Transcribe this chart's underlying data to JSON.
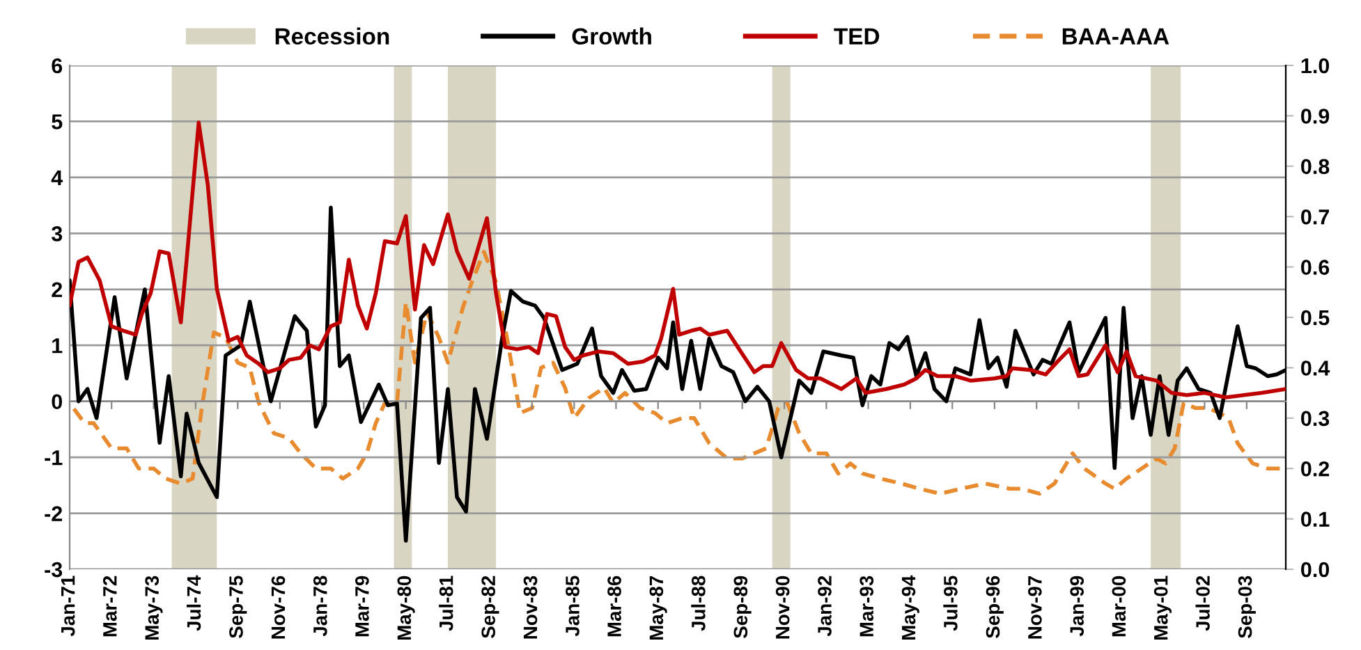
{
  "chart_data": {
    "type": "line",
    "legend": "top",
    "grid": "y",
    "marker": "none",
    "xlim": [
      "1971-01",
      "2004-10"
    ],
    "xticks": [
      {
        "value": "1971-01",
        "label": "Jan-71"
      },
      {
        "value": "1972-03",
        "label": "Mar-72"
      },
      {
        "value": "1973-05",
        "label": "May-73"
      },
      {
        "value": "1974-07",
        "label": "Jul-74"
      },
      {
        "value": "1975-09",
        "label": "Sep-75"
      },
      {
        "value": "1976-11",
        "label": "Nov-76"
      },
      {
        "value": "1978-01",
        "label": "Jan-78"
      },
      {
        "value": "1979-03",
        "label": "Mar-79"
      },
      {
        "value": "1980-05",
        "label": "May-80"
      },
      {
        "value": "1981-07",
        "label": "Jul-81"
      },
      {
        "value": "1982-09",
        "label": "Sep-82"
      },
      {
        "value": "1983-11",
        "label": "Nov-83"
      },
      {
        "value": "1985-01",
        "label": "Jan-85"
      },
      {
        "value": "1986-03",
        "label": "Mar-86"
      },
      {
        "value": "1987-05",
        "label": "May-87"
      },
      {
        "value": "1988-07",
        "label": "Jul-88"
      },
      {
        "value": "1989-09",
        "label": "Sep-89"
      },
      {
        "value": "1990-11",
        "label": "Nov-90"
      },
      {
        "value": "1992-01",
        "label": "Jan-92"
      },
      {
        "value": "1993-03",
        "label": "Mar-93"
      },
      {
        "value": "1994-05",
        "label": "May-94"
      },
      {
        "value": "1995-07",
        "label": "Jul-95"
      },
      {
        "value": "1996-09",
        "label": "Sep-96"
      },
      {
        "value": "1997-11",
        "label": "Nov-97"
      },
      {
        "value": "1999-01",
        "label": "Jan-99"
      },
      {
        "value": "2000-03",
        "label": "Mar-00"
      },
      {
        "value": "2001-05",
        "label": "May-01"
      },
      {
        "value": "2002-07",
        "label": "Jul-02"
      },
      {
        "value": "2003-09",
        "label": "Sep-03"
      }
    ],
    "ylim": [
      -3,
      6
    ],
    "yticks": [
      -3,
      -2,
      -1,
      0,
      1,
      2,
      3,
      4,
      5,
      6
    ],
    "y2lim": [
      0,
      1
    ],
    "y2ticks": [
      {
        "value": 0,
        "label": "0.0"
      },
      {
        "value": 0.1,
        "label": "0.1"
      },
      {
        "value": 0.2,
        "label": "0.2"
      },
      {
        "value": 0.3,
        "label": "0.3"
      },
      {
        "value": 0.4,
        "label": "0.4"
      },
      {
        "value": 0.5,
        "label": "0.5"
      },
      {
        "value": 0.6,
        "label": "0.6"
      },
      {
        "value": 0.7,
        "label": "0.7"
      },
      {
        "value": 0.8,
        "label": "0.8"
      },
      {
        "value": 0.9,
        "label": "0.9"
      },
      {
        "value": 1,
        "label": "1.0"
      }
    ],
    "bands": [
      {
        "axis": "x",
        "from": "1973-11",
        "to": "1975-02",
        "label": "Recession",
        "color": "#d9d5c3"
      },
      {
        "axis": "x",
        "from": "1980-01",
        "to": "1980-07",
        "color": "#d9d5c3"
      },
      {
        "axis": "x",
        "from": "1981-07",
        "to": "1982-11",
        "color": "#d9d5c3"
      },
      {
        "axis": "x",
        "from": "1990-07",
        "to": "1991-01",
        "color": "#d9d5c3"
      },
      {
        "axis": "x",
        "from": "2001-01",
        "to": "2001-11",
        "color": "#d9d5c3"
      }
    ],
    "series": [
      {
        "name": "Growth",
        "color": "#000000",
        "line_style": "solid",
        "x": [
          "1971-01",
          "1971-04",
          "1971-07",
          "1971-10",
          "1972-04",
          "1972-08",
          "1973-02",
          "1973-07",
          "1973-10",
          "1974-02",
          "1974-04",
          "1974-08",
          "1975-02",
          "1975-05",
          "1975-10",
          "1976-01",
          "1976-08",
          "1977-04",
          "1977-08",
          "1977-11",
          "1978-02",
          "1978-04",
          "1978-07",
          "1978-10",
          "1979-02",
          "1979-08",
          "1979-11",
          "1980-02",
          "1980-05",
          "1980-10",
          "1981-01",
          "1981-04",
          "1981-07",
          "1981-10",
          "1982-01",
          "1982-04",
          "1982-08",
          "1983-01",
          "1983-04",
          "1983-08",
          "1983-12",
          "1984-03",
          "1984-09",
          "1985-02",
          "1985-07",
          "1985-10",
          "1986-02",
          "1986-05",
          "1986-09",
          "1987-01",
          "1987-05",
          "1987-08",
          "1987-10",
          "1988-01",
          "1988-04",
          "1988-07",
          "1988-10",
          "1989-02",
          "1989-06",
          "1989-10",
          "1990-02",
          "1990-06",
          "1990-10",
          "1991-04",
          "1991-08",
          "1991-12",
          "1992-06",
          "1992-10",
          "1993-01",
          "1993-04",
          "1993-07",
          "1993-10",
          "1994-01",
          "1994-04",
          "1994-07",
          "1994-10",
          "1995-01",
          "1995-05",
          "1995-08",
          "1996-01",
          "1996-04",
          "1996-07",
          "1996-10",
          "1997-01",
          "1997-04",
          "1997-10",
          "1998-01",
          "1998-04",
          "1998-10",
          "1999-01",
          "1999-10",
          "2000-01",
          "2000-04",
          "2000-07",
          "2000-10",
          "2001-01",
          "2001-04",
          "2001-07",
          "2001-10",
          "2002-01",
          "2002-05",
          "2002-09",
          "2002-12",
          "2003-06",
          "2003-09",
          "2003-12",
          "2004-04",
          "2004-07",
          "2004-10"
        ],
        "values": [
          2.16,
          0.0,
          0.22,
          -0.3,
          1.86,
          0.41,
          2.0,
          -0.74,
          0.45,
          -1.34,
          -0.22,
          -1.1,
          -1.71,
          0.82,
          1.0,
          1.78,
          0.0,
          1.52,
          1.26,
          -0.45,
          -0.07,
          3.46,
          0.63,
          0.82,
          -0.37,
          0.3,
          -0.07,
          -0.04,
          -2.49,
          1.49,
          1.67,
          -1.1,
          0.22,
          -1.71,
          -1.97,
          0.22,
          -0.67,
          1.12,
          1.97,
          1.78,
          1.71,
          1.49,
          0.56,
          0.67,
          1.3,
          0.45,
          0.15,
          0.56,
          0.19,
          0.22,
          0.78,
          0.59,
          1.41,
          0.22,
          1.08,
          0.22,
          1.12,
          0.63,
          0.52,
          0.0,
          0.26,
          0.0,
          -1.0,
          0.37,
          0.15,
          0.89,
          0.82,
          0.78,
          -0.07,
          0.45,
          0.3,
          1.04,
          0.93,
          1.15,
          0.45,
          0.86,
          0.22,
          0.0,
          0.59,
          0.48,
          1.45,
          0.59,
          0.78,
          0.26,
          1.26,
          0.48,
          0.74,
          0.67,
          1.41,
          0.52,
          1.49,
          -1.19,
          1.67,
          -0.3,
          0.45,
          -0.6,
          0.45,
          -0.6,
          0.37,
          0.59,
          0.22,
          0.15,
          -0.3,
          1.34,
          0.63,
          0.59,
          0.45,
          0.48,
          0.56
        ]
      },
      {
        "name": "TED",
        "color": "#c00000",
        "line_style": "solid",
        "x": [
          "1971-01",
          "1971-04",
          "1971-07",
          "1971-11",
          "1972-03",
          "1972-07",
          "1972-11",
          "1973-01",
          "1973-04",
          "1973-07",
          "1973-10",
          "1974-02",
          "1974-04",
          "1974-08",
          "1974-11",
          "1975-02",
          "1975-06",
          "1975-09",
          "1975-12",
          "1976-04",
          "1976-07",
          "1976-11",
          "1977-02",
          "1977-06",
          "1977-09",
          "1977-12",
          "1978-04",
          "1978-07",
          "1978-10",
          "1979-01",
          "1979-04",
          "1979-07",
          "1979-10",
          "1980-02",
          "1980-05",
          "1980-08",
          "1980-11",
          "1981-02",
          "1981-07",
          "1981-10",
          "1982-02",
          "1982-08",
          "1982-11",
          "1983-02",
          "1983-06",
          "1983-10",
          "1984-01",
          "1984-04",
          "1984-07",
          "1984-10",
          "1985-01",
          "1985-04",
          "1985-09",
          "1986-02",
          "1986-07",
          "1986-12",
          "1987-04",
          "1987-06",
          "1987-10",
          "1987-12",
          "1988-04",
          "1988-07",
          "1988-10",
          "1989-04",
          "1989-08",
          "1990-01",
          "1990-04",
          "1990-07",
          "1990-10",
          "1991-03",
          "1991-07",
          "1991-11",
          "1992-06",
          "1992-11",
          "1993-02",
          "1993-09",
          "1994-03",
          "1994-07",
          "1994-10",
          "1995-02",
          "1995-08",
          "1996-01",
          "1996-09",
          "1997-01",
          "1997-03",
          "1997-09",
          "1998-02",
          "1998-06",
          "1998-10",
          "1999-01",
          "1999-04",
          "1999-10",
          "2000-02",
          "2000-05",
          "2000-08",
          "2001-03",
          "2001-08",
          "2002-01",
          "2002-07",
          "2003-02",
          "2003-08",
          "2004-02",
          "2004-10"
        ],
        "values": [
          1.71,
          2.49,
          2.57,
          2.16,
          1.34,
          1.26,
          1.19,
          1.56,
          1.93,
          2.68,
          2.64,
          1.41,
          2.53,
          4.98,
          3.87,
          2.01,
          1.08,
          1.15,
          0.82,
          0.67,
          0.52,
          0.59,
          0.74,
          0.78,
          1.0,
          0.93,
          1.34,
          1.41,
          2.53,
          1.71,
          1.3,
          1.93,
          2.86,
          2.82,
          3.31,
          1.64,
          2.79,
          2.45,
          3.34,
          2.68,
          2.19,
          3.27,
          1.93,
          0.97,
          0.93,
          0.97,
          0.86,
          1.56,
          1.52,
          0.97,
          0.74,
          0.82,
          0.89,
          0.86,
          0.67,
          0.71,
          0.82,
          1.12,
          2.01,
          1.19,
          1.26,
          1.3,
          1.19,
          1.26,
          0.93,
          0.52,
          0.63,
          0.63,
          1.04,
          0.56,
          0.41,
          0.41,
          0.22,
          0.41,
          0.15,
          0.22,
          0.3,
          0.41,
          0.56,
          0.45,
          0.45,
          0.37,
          0.41,
          0.45,
          0.59,
          0.56,
          0.48,
          0.71,
          0.93,
          0.45,
          0.48,
          1.0,
          0.52,
          0.89,
          0.45,
          0.37,
          0.15,
          0.11,
          0.15,
          0.07,
          0.11,
          0.15,
          0.22
        ]
      },
      {
        "name": "BAA-AAA",
        "color": "#e88a2e",
        "line_style": "dashed",
        "axis": "y2",
        "x": [
          "1971-01",
          "1971-06",
          "1971-09",
          "1972-03",
          "1972-08",
          "1972-12",
          "1973-05",
          "1973-09",
          "1974-02",
          "1974-06",
          "1974-09",
          "1975-01",
          "1975-05",
          "1975-09",
          "1976-01",
          "1976-04",
          "1976-09",
          "1977-02",
          "1977-06",
          "1977-11",
          "1978-04",
          "1978-08",
          "1979-01",
          "1979-04",
          "1979-07",
          "1979-10",
          "1980-02",
          "1980-05",
          "1980-08",
          "1980-12",
          "1981-04",
          "1981-07",
          "1981-12",
          "1982-03",
          "1982-07",
          "1982-11",
          "1983-03",
          "1983-07",
          "1983-11",
          "1984-02",
          "1984-06",
          "1984-10",
          "1985-01",
          "1985-06",
          "1985-11",
          "1986-02",
          "1986-06",
          "1986-11",
          "1987-04",
          "1987-08",
          "1988-01",
          "1988-05",
          "1988-10",
          "1989-04",
          "1989-09",
          "1990-05",
          "1990-09",
          "1990-12",
          "1991-04",
          "1991-08",
          "1992-01",
          "1992-05",
          "1992-09",
          "1993-01",
          "1993-07",
          "1994-02",
          "1994-08",
          "1995-03",
          "1995-10",
          "1996-06",
          "1997-02",
          "1997-06",
          "1997-12",
          "1998-05",
          "1998-11",
          "1999-03",
          "1999-10",
          "2000-01",
          "2000-05",
          "2000-10",
          "2001-03",
          "2001-06",
          "2001-09",
          "2001-12",
          "2002-04",
          "2002-08",
          "2002-12",
          "2003-03",
          "2003-06",
          "2003-11",
          "2004-04",
          "2004-08"
        ],
        "values": [
          0.33,
          0.29,
          0.29,
          0.24,
          0.24,
          0.2,
          0.2,
          0.18,
          0.17,
          0.18,
          0.32,
          0.47,
          0.46,
          0.41,
          0.4,
          0.33,
          0.27,
          0.26,
          0.23,
          0.2,
          0.2,
          0.18,
          0.2,
          0.23,
          0.29,
          0.33,
          0.33,
          0.53,
          0.41,
          0.51,
          0.46,
          0.41,
          0.52,
          0.57,
          0.63,
          0.57,
          0.45,
          0.31,
          0.32,
          0.4,
          0.41,
          0.36,
          0.3,
          0.34,
          0.36,
          0.33,
          0.35,
          0.32,
          0.31,
          0.29,
          0.3,
          0.3,
          0.25,
          0.22,
          0.22,
          0.24,
          0.32,
          0.33,
          0.27,
          0.23,
          0.23,
          0.19,
          0.21,
          0.19,
          0.18,
          0.17,
          0.16,
          0.15,
          0.16,
          0.17,
          0.16,
          0.16,
          0.15,
          0.17,
          0.23,
          0.2,
          0.17,
          0.16,
          0.18,
          0.2,
          0.22,
          0.21,
          0.24,
          0.33,
          0.32,
          0.32,
          0.31,
          0.3,
          0.25,
          0.21,
          0.2,
          0.2
        ]
      }
    ]
  }
}
